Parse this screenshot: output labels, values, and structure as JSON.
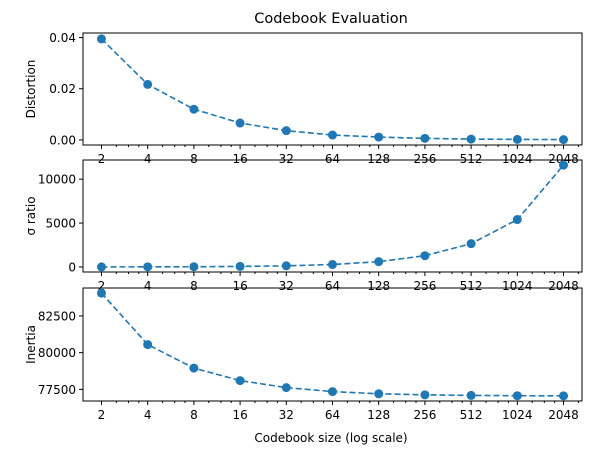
{
  "figure": {
    "title": "Codebook Evaluation",
    "xlabel": "Codebook size (log scale)",
    "color": "#1f77b4"
  },
  "chart_data": [
    {
      "type": "line",
      "title": "Codebook Evaluation",
      "xlabel": "",
      "ylabel": "Distortion",
      "xscale": "log2",
      "x": [
        2,
        4,
        8,
        16,
        32,
        64,
        128,
        256,
        512,
        1024,
        2048
      ],
      "x_ticks": [
        "2",
        "4",
        "8",
        "16",
        "32",
        "64",
        "128",
        "256",
        "512",
        "1024",
        "2048"
      ],
      "values": [
        0.0395,
        0.0217,
        0.012,
        0.0066,
        0.0036,
        0.0019,
        0.0011,
        0.0006,
        0.0003,
        0.0002,
        0.0001
      ],
      "ylim": [
        -0.002,
        0.0418
      ],
      "y_ticks": [
        0.0,
        0.02,
        0.04
      ],
      "y_tick_labels": [
        "0.00",
        "0.02",
        "0.04"
      ],
      "grid": false,
      "marker": "circle",
      "linestyle": "dashed"
    },
    {
      "type": "line",
      "title": "",
      "xlabel": "",
      "ylabel": "σ ratio",
      "xscale": "log2",
      "x": [
        2,
        4,
        8,
        16,
        32,
        64,
        128,
        256,
        512,
        1024,
        2048
      ],
      "x_ticks": [
        "2",
        "4",
        "8",
        "16",
        "32",
        "64",
        "128",
        "256",
        "512",
        "1024",
        "2048"
      ],
      "values": [
        5,
        12,
        25,
        60,
        130,
        280,
        600,
        1280,
        2650,
        5400,
        11600
      ],
      "ylim": [
        -575,
        12180
      ],
      "y_ticks": [
        0,
        5000,
        10000
      ],
      "y_tick_labels": [
        "0",
        "5000",
        "10000"
      ],
      "grid": false,
      "marker": "circle",
      "linestyle": "dashed"
    },
    {
      "type": "line",
      "title": "",
      "xlabel": "Codebook size (log scale)",
      "ylabel": "Inertia",
      "xscale": "log2",
      "x": [
        2,
        4,
        8,
        16,
        32,
        64,
        128,
        256,
        512,
        1024,
        2048
      ],
      "x_ticks": [
        "2",
        "4",
        "8",
        "16",
        "32",
        "64",
        "128",
        "256",
        "512",
        "1024",
        "2048"
      ],
      "values": [
        84050,
        80550,
        78950,
        78100,
        77620,
        77350,
        77200,
        77130,
        77090,
        77070,
        77060
      ],
      "ylim": [
        76710,
        84400
      ],
      "y_ticks": [
        77500,
        80000,
        82500
      ],
      "y_tick_labels": [
        "77500",
        "80000",
        "82500"
      ],
      "grid": false,
      "marker": "circle",
      "linestyle": "dashed"
    }
  ]
}
